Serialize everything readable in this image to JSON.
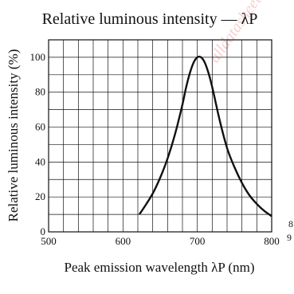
{
  "chart_data": {
    "type": "line",
    "title": "Relative luminous intensity — λP",
    "xlabel": "Peak emission wavelength  λP (nm)",
    "ylabel": "Relative luminous intensity  (%)",
    "xlim": [
      500,
      800
    ],
    "ylim": [
      0,
      110
    ],
    "x_ticks": [
      "500",
      "600",
      "700",
      "800"
    ],
    "y_ticks": [
      "0",
      "20",
      "40",
      "60",
      "80",
      "100"
    ],
    "grid": true,
    "series": [
      {
        "x": [
          622,
          630,
          640,
          650,
          660,
          670,
          680,
          685,
          690,
          695,
          700,
          705,
          710,
          715,
          720,
          730,
          740,
          750,
          760,
          770,
          780,
          790,
          800
        ],
        "y": [
          10,
          15,
          22,
          31,
          42,
          56,
          73,
          83,
          91,
          97,
          100,
          100,
          97,
          91,
          83,
          64,
          48,
          37,
          28,
          21,
          16,
          12,
          9
        ]
      }
    ],
    "color": "#111111"
  },
  "edge_marks": [
    "8",
    "9"
  ],
  "watermark": {
    "text": "alldatasheet",
    "color": "#f4b0b0"
  }
}
